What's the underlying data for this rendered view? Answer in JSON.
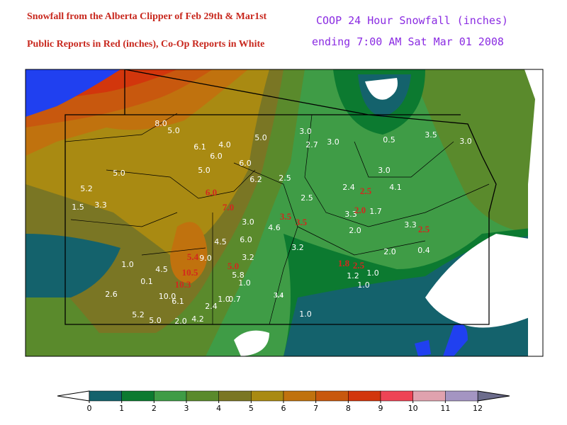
{
  "header": {
    "left_title": "Snowfall from the Alberta Clipper of Feb 29th & Mar1st",
    "left_subtitle": "Public Reports in Red (inches), Co-Op Reports in White",
    "right_title": "COOP 24 Hour Snowfall (inches)",
    "right_subtitle": "ending 7:00 AM Sat Mar 01 2008"
  },
  "coop_reports": [
    "8.0",
    "5.0",
    "6.1",
    "4.0",
    "6.0",
    "6.0",
    "5.0",
    "5.0",
    "5.0",
    "3.0",
    "2.7",
    "3.0",
    "0.5",
    "3.5",
    "3.0",
    "3.0",
    "6.2",
    "2.5",
    "5.2",
    "1.5",
    "3.3",
    "2.5",
    "2.4",
    "4.1",
    "3.3",
    "1.7",
    "3.0",
    "4.6",
    "2.0",
    "3.3",
    "4.5",
    "6.0",
    "9.0",
    "3.2",
    "3.2",
    "2.0",
    "0.4",
    "1.0",
    "4.5",
    "0.1",
    "5.8",
    "1.0",
    "1.2",
    "1.0",
    "1.0",
    "2.6",
    "10.0",
    "6.1",
    "1.0",
    "0.7",
    "2.4",
    "1.0",
    "5.2",
    "5.0",
    "2.0",
    "4.2",
    "3.4"
  ],
  "public_reports": [
    "6.0",
    "7.0",
    "3.5",
    "3.5",
    "2.5",
    "2.0",
    "2.5",
    "5.4",
    "10.5",
    "5.0",
    "10.3",
    "1.8",
    "2.5"
  ],
  "legend": {
    "ticks": [
      0,
      1,
      2,
      3,
      4,
      5,
      6,
      7,
      8,
      9,
      10,
      11,
      12
    ],
    "colors": [
      "#14626c",
      "#0c7a30",
      "#3f9c46",
      "#5a8a2c",
      "#7a7624",
      "#a98a12",
      "#c0720e",
      "#c8580e",
      "#d2360c",
      "#ee4455",
      "#e0a2ae",
      "#a495c2"
    ],
    "below_color": "#ffffff",
    "above_color": "#6c6c8c"
  }
}
